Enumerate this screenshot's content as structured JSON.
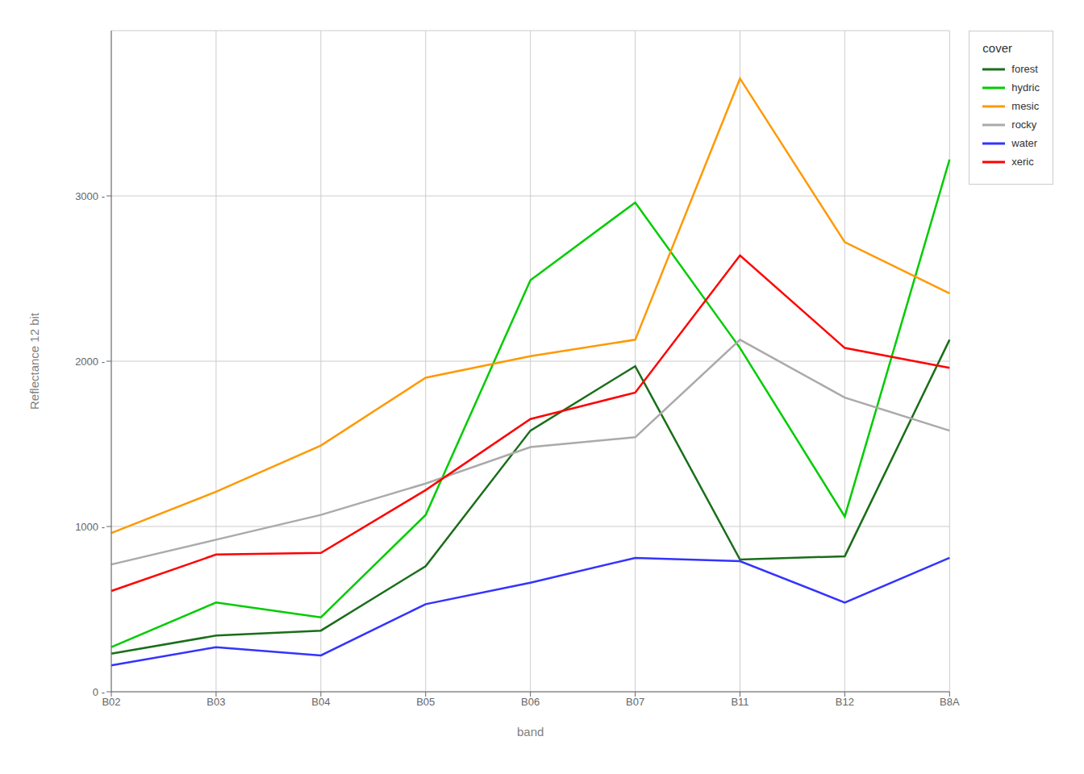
{
  "chart_data": {
    "type": "line",
    "categories": [
      "B02",
      "B03",
      "B04",
      "B05",
      "B06",
      "B07",
      "B11",
      "B12",
      "B8A"
    ],
    "series": [
      {
        "name": "forest",
        "color": "#1a6e1a",
        "values": [
          230,
          340,
          370,
          760,
          1580,
          1970,
          800,
          820,
          2130
        ]
      },
      {
        "name": "hydric",
        "color": "#00cc00",
        "values": [
          270,
          540,
          450,
          1070,
          2490,
          2960,
          2080,
          1060,
          3220
        ]
      },
      {
        "name": "mesic",
        "color": "#ff9900",
        "values": [
          960,
          1210,
          1490,
          1900,
          2030,
          2130,
          3710,
          2720,
          2410
        ]
      },
      {
        "name": "rocky",
        "color": "#aaaaaa",
        "values": [
          770,
          920,
          1070,
          1260,
          1480,
          1540,
          2130,
          1780,
          1580
        ]
      },
      {
        "name": "water",
        "color": "#3333ff",
        "values": [
          160,
          270,
          220,
          530,
          660,
          810,
          790,
          540,
          810
        ]
      },
      {
        "name": "xeric",
        "color": "#ff0000",
        "values": [
          610,
          830,
          840,
          1220,
          1650,
          1810,
          2640,
          2080,
          1960
        ]
      }
    ],
    "xlabel": "band",
    "ylabel": "Reflectance 12 bit",
    "ylim": [
      0,
      4000
    ],
    "yticks": [
      {
        "value": 0,
        "label": "0 -"
      },
      {
        "value": 1000,
        "label": "1000 -"
      },
      {
        "value": 2000,
        "label": "2000 -"
      },
      {
        "value": 3000,
        "label": "3000 -"
      }
    ],
    "grid": true,
    "legend": "right",
    "legend_title": "cover"
  }
}
